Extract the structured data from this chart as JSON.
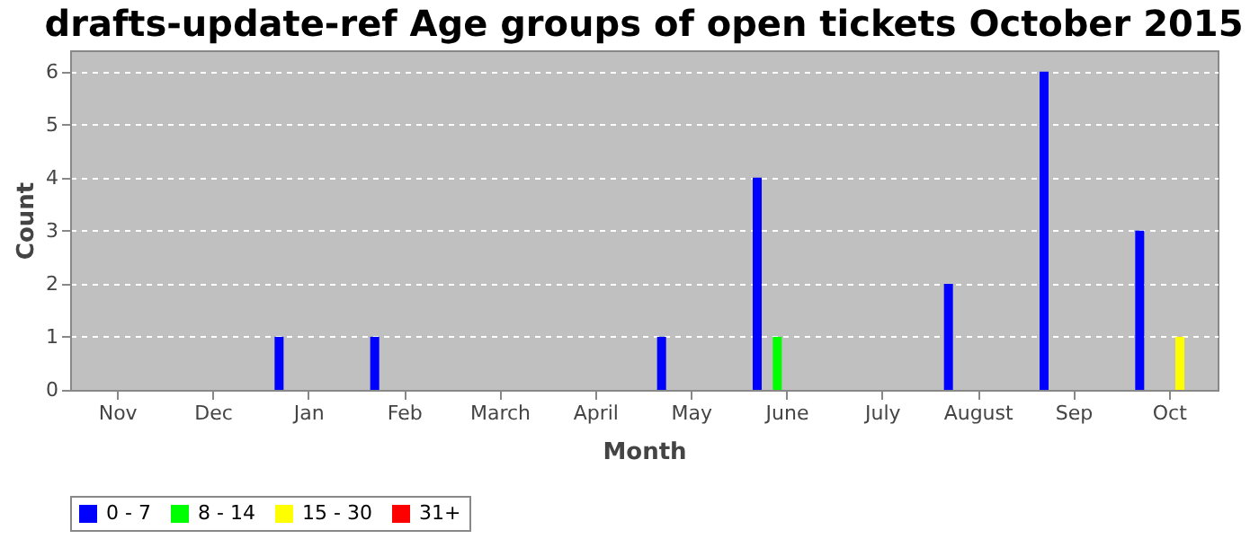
{
  "chart_data": {
    "type": "bar",
    "title": "drafts-update-ref Age groups of open tickets October 2015",
    "xlabel": "Month",
    "ylabel": "Count",
    "categories": [
      "Nov",
      "Dec",
      "Jan",
      "Feb",
      "March",
      "April",
      "May",
      "June",
      "July",
      "August",
      "Sep",
      "Oct"
    ],
    "series": [
      {
        "name": "0 - 7",
        "color": "#0000ff",
        "values": [
          0,
          0,
          1,
          1,
          0,
          0,
          1,
          4,
          0,
          2,
          6,
          3
        ]
      },
      {
        "name": "8 - 14",
        "color": "#00ff00",
        "values": [
          0,
          0,
          0,
          0,
          0,
          0,
          0,
          1,
          0,
          0,
          0,
          0
        ]
      },
      {
        "name": "15 - 30",
        "color": "#ffff00",
        "values": [
          0,
          0,
          0,
          0,
          0,
          0,
          0,
          0,
          0,
          0,
          0,
          1
        ]
      },
      {
        "name": "31+",
        "color": "#ff0000",
        "values": [
          0,
          0,
          0,
          0,
          0,
          0,
          0,
          0,
          0,
          0,
          0,
          0
        ]
      }
    ],
    "ylim": [
      0,
      6.4
    ],
    "yticks": [
      0,
      1,
      2,
      3,
      4,
      5,
      6
    ],
    "grid": "y",
    "legend": "bottom"
  }
}
